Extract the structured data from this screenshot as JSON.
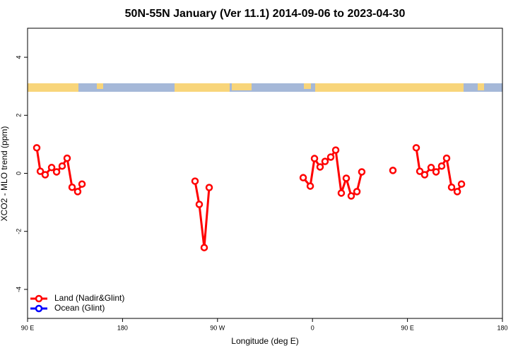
{
  "chart_data": {
    "type": "line",
    "title": "50N-55N January (Ver 11.1)   2014-09-06 to 2023-04-30",
    "xlabel": "Longitude (deg E)",
    "ylabel": "XCO2 - MLO trend (ppm)",
    "xlim": [
      90,
      540
    ],
    "xticks": [
      {
        "value": 90,
        "label": "90 E"
      },
      180,
      {
        "value": 270,
        "label": "90 W"
      },
      {
        "value": 360,
        "label": "0"
      },
      {
        "value": 450,
        "label": "90 E"
      },
      {
        "value": 540,
        "label": "180"
      }
    ],
    "ylim": [
      -5,
      5
    ],
    "yticks": [
      -4,
      -2,
      0,
      2,
      4
    ],
    "legend": "bottom-left",
    "series": [
      {
        "name": "Land (Nadir&Glint)",
        "color": "#ff0000",
        "x": [
          98.7,
          102.1,
          106.7,
          112.8,
          117.5,
          122.8,
          127.5,
          132.2,
          137.5,
          141.6,
          null,
          248.7,
          252.7,
          257.4,
          262.1,
          null,
          351.2,
          357.9,
          361.9,
          367.2,
          371.9,
          377.3,
          382.0,
          387.3,
          392.0,
          396.7,
          402.1,
          406.7,
          null,
          436.2,
          null,
          458.3,
          461.7,
          466.3,
          472.4,
          477.1,
          482.4,
          487.1,
          491.8,
          497.2,
          501.2
        ],
        "values": [
          0.88,
          0.07,
          -0.05,
          0.2,
          0.05,
          0.25,
          0.52,
          -0.48,
          -0.63,
          -0.37,
          null,
          -0.27,
          -1.07,
          -2.56,
          -0.49,
          null,
          -0.15,
          -0.44,
          0.51,
          0.22,
          0.41,
          0.56,
          0.8,
          -0.68,
          -0.17,
          -0.78,
          -0.63,
          0.05,
          null,
          0.1,
          null,
          0.88,
          0.07,
          -0.05,
          0.2,
          0.05,
          0.25,
          0.52,
          -0.48,
          -0.63,
          -0.37
        ]
      },
      {
        "name": "Ocean (Glint)",
        "color": "#0000ff",
        "x": [],
        "values": []
      }
    ]
  }
}
